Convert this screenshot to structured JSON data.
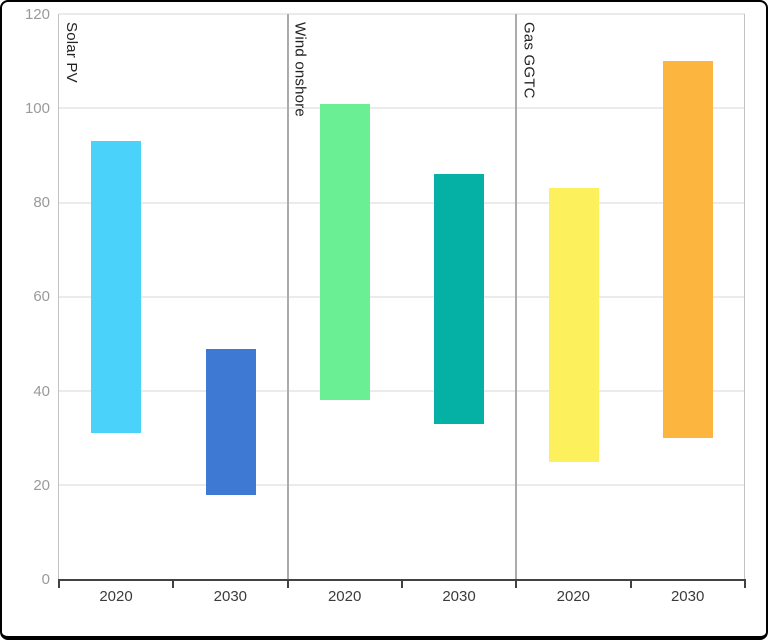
{
  "chart_data": {
    "type": "bar",
    "subtype": "floating-range-columns",
    "title": "",
    "ylabel": "",
    "xlabel": "",
    "ylim": [
      0,
      120
    ],
    "y_ticks": [
      0,
      20,
      40,
      60,
      80,
      100,
      120
    ],
    "grid": true,
    "legend": "none",
    "groups": [
      {
        "label": "Solar PV",
        "bars": [
          {
            "category": "2020",
            "low": 31,
            "high": 93,
            "color": "#4BD2FA"
          },
          {
            "category": "2030",
            "low": 18,
            "high": 49,
            "color": "#3E7AD3"
          }
        ]
      },
      {
        "label": "Wind onshore",
        "bars": [
          {
            "category": "2020",
            "low": 38,
            "high": 101,
            "color": "#6BEF95"
          },
          {
            "category": "2030",
            "low": 33,
            "high": 86,
            "color": "#04B1A4"
          }
        ]
      },
      {
        "label": "Gas GGTC",
        "bars": [
          {
            "category": "2020",
            "low": 25,
            "high": 83,
            "color": "#FCF05C"
          },
          {
            "category": "2030",
            "low": 30,
            "high": 110,
            "color": "#FCB53F"
          }
        ]
      }
    ],
    "colors": {
      "axis": "#424242",
      "gridline": "#EBEBEB",
      "section_divider": "#ABABAB",
      "y_tick_label": "#9A9A9A",
      "x_tick_label": "#3B3B3B",
      "group_label": "#222222",
      "background": "#FFFFFF",
      "frame_border": "#000000"
    }
  }
}
